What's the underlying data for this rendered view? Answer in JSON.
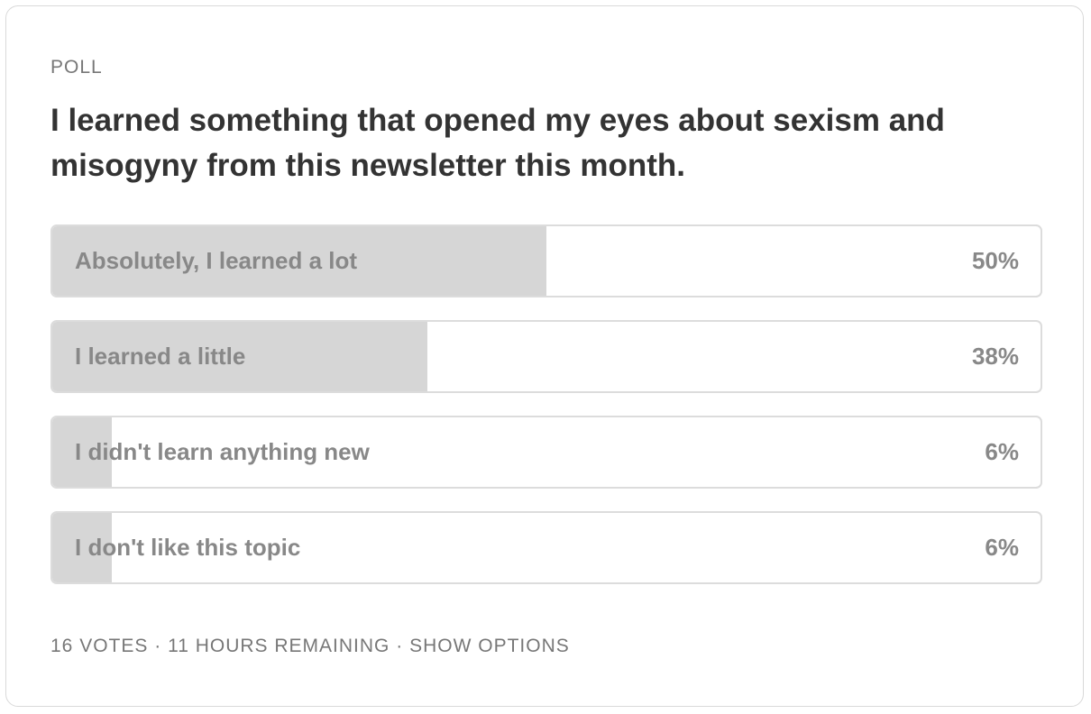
{
  "poll": {
    "kicker": "POLL",
    "question": "I learned something that opened my eyes about sexism and misogyny from this newsletter this month.",
    "options": [
      {
        "label": "Absolutely, I learned a lot",
        "value": 50,
        "value_label": "50%"
      },
      {
        "label": "I learned a little",
        "value": 38,
        "value_label": "38%"
      },
      {
        "label": "I didn't learn anything new",
        "value": 6,
        "value_label": "6%"
      },
      {
        "label": "I don't like this topic",
        "value": 6,
        "value_label": "6%"
      }
    ],
    "footer": {
      "votes": "16 VOTES",
      "remaining": "11 HOURS REMAINING",
      "action": "SHOW OPTIONS",
      "separator": "·"
    }
  }
}
